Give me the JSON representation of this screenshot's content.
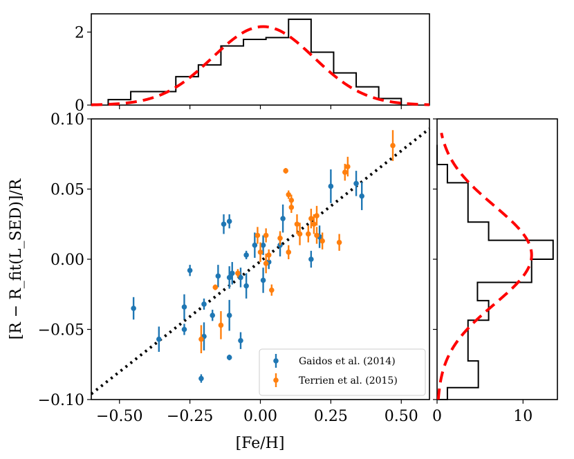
{
  "chart_data": [
    {
      "type": "scatter",
      "name": "main-scatter",
      "xlabel": "[Fe/H]",
      "ylabel": "[R − R_fit(L_SED)]/R",
      "xlim": [
        -0.6,
        0.6
      ],
      "ylim": [
        -0.1,
        0.1
      ],
      "x_ticks": [
        -0.5,
        -0.25,
        0.0,
        0.25,
        0.5
      ],
      "x_tick_labels": [
        "−0.50",
        "−0.25",
        "0.00",
        "0.25",
        "0.50"
      ],
      "y_ticks": [
        -0.1,
        -0.05,
        0.0,
        0.05,
        0.1
      ],
      "y_tick_labels": [
        "−0.10",
        "−0.05",
        "0.00",
        "0.05",
        "0.10"
      ],
      "trend_line": {
        "style": "dotted",
        "color": "#000000",
        "points": [
          [
            -0.6,
            -0.096
          ],
          [
            0.6,
            0.093
          ]
        ]
      },
      "legend": {
        "location": "lower-right"
      },
      "series": [
        {
          "name": "Gaidos et al. (2014)",
          "color": "#1f77b4",
          "points": [
            {
              "x": -0.45,
              "y": -0.035,
              "err": 0.008
            },
            {
              "x": -0.36,
              "y": -0.057,
              "err": 0.009
            },
            {
              "x": -0.27,
              "y": -0.034,
              "err": 0.009
            },
            {
              "x": -0.27,
              "y": -0.05,
              "err": 0.004
            },
            {
              "x": -0.25,
              "y": -0.008,
              "err": 0.004
            },
            {
              "x": -0.21,
              "y": -0.085,
              "err": 0.003
            },
            {
              "x": -0.2,
              "y": -0.032,
              "err": 0.004
            },
            {
              "x": -0.2,
              "y": -0.055,
              "err": 0.01
            },
            {
              "x": -0.17,
              "y": -0.04,
              "err": 0.004
            },
            {
              "x": -0.13,
              "y": 0.025,
              "err": 0.007
            },
            {
              "x": -0.11,
              "y": 0.027,
              "err": 0.005
            },
            {
              "x": -0.11,
              "y": -0.013,
              "err": 0.008
            },
            {
              "x": -0.1,
              "y": -0.01,
              "err": 0.008
            },
            {
              "x": -0.11,
              "y": -0.04,
              "err": 0.011
            },
            {
              "x": -0.11,
              "y": -0.07,
              "err": 0.002
            },
            {
              "x": -0.15,
              "y": -0.012,
              "err": 0.008
            },
            {
              "x": -0.07,
              "y": -0.013,
              "err": 0.007
            },
            {
              "x": -0.07,
              "y": -0.058,
              "err": 0.006
            },
            {
              "x": -0.05,
              "y": 0.003,
              "err": 0.003
            },
            {
              "x": -0.05,
              "y": -0.019,
              "err": 0.009
            },
            {
              "x": -0.02,
              "y": 0.01,
              "err": 0.009
            },
            {
              "x": 0.01,
              "y": 0.01,
              "err": 0.007
            },
            {
              "x": 0.01,
              "y": -0.015,
              "err": 0.009
            },
            {
              "x": 0.03,
              "y": -0.002,
              "err": 0.005
            },
            {
              "x": 0.07,
              "y": 0.01,
              "err": 0.008
            },
            {
              "x": 0.08,
              "y": 0.029,
              "err": 0.01
            },
            {
              "x": 0.18,
              "y": 0.0,
              "err": 0.006
            },
            {
              "x": 0.21,
              "y": 0.016,
              "err": 0.008
            },
            {
              "x": 0.25,
              "y": 0.052,
              "err": 0.012
            },
            {
              "x": 0.34,
              "y": 0.054,
              "err": 0.009
            },
            {
              "x": 0.36,
              "y": 0.045,
              "err": 0.01
            }
          ]
        },
        {
          "name": "Terrien et al. (2015)",
          "color": "#ff7f0e",
          "points": [
            {
              "x": -0.16,
              "y": -0.02,
              "err": 0.002
            },
            {
              "x": -0.14,
              "y": -0.047,
              "err": 0.01
            },
            {
              "x": -0.21,
              "y": -0.057,
              "err": 0.01
            },
            {
              "x": -0.08,
              "y": -0.01,
              "err": 0.003
            },
            {
              "x": -0.01,
              "y": 0.017,
              "err": 0.006
            },
            {
              "x": 0.0,
              "y": 0.005,
              "err": 0.007
            },
            {
              "x": 0.02,
              "y": 0.017,
              "err": 0.005
            },
            {
              "x": 0.02,
              "y": -0.003,
              "err": 0.007
            },
            {
              "x": 0.03,
              "y": 0.003,
              "err": 0.004
            },
            {
              "x": 0.04,
              "y": -0.022,
              "err": 0.004
            },
            {
              "x": 0.07,
              "y": 0.015,
              "err": 0.005
            },
            {
              "x": 0.09,
              "y": 0.063,
              "err": 0.002
            },
            {
              "x": 0.1,
              "y": 0.046,
              "err": 0.003
            },
            {
              "x": 0.11,
              "y": 0.042,
              "err": 0.004
            },
            {
              "x": 0.11,
              "y": 0.037,
              "err": 0.004
            },
            {
              "x": 0.1,
              "y": 0.005,
              "err": 0.005
            },
            {
              "x": 0.13,
              "y": 0.025,
              "err": 0.007
            },
            {
              "x": 0.14,
              "y": 0.018,
              "err": 0.008
            },
            {
              "x": 0.17,
              "y": 0.018,
              "err": 0.006
            },
            {
              "x": 0.18,
              "y": 0.029,
              "err": 0.007
            },
            {
              "x": 0.19,
              "y": 0.025,
              "err": 0.007
            },
            {
              "x": 0.2,
              "y": 0.031,
              "err": 0.007
            },
            {
              "x": 0.2,
              "y": 0.017,
              "err": 0.006
            },
            {
              "x": 0.22,
              "y": 0.013,
              "err": 0.006
            },
            {
              "x": 0.28,
              "y": 0.012,
              "err": 0.006
            },
            {
              "x": 0.3,
              "y": 0.062,
              "err": 0.006
            },
            {
              "x": 0.31,
              "y": 0.066,
              "err": 0.007
            },
            {
              "x": 0.47,
              "y": 0.081,
              "err": 0.011
            }
          ]
        }
      ]
    },
    {
      "type": "histogram",
      "name": "top-histogram",
      "orientation": "vertical",
      "xlim": [
        -0.6,
        0.6
      ],
      "ylim": [
        0,
        2.5
      ],
      "y_ticks": [
        0,
        2
      ],
      "y_tick_labels": [
        "0",
        "2"
      ],
      "bin_edges": [
        -0.54,
        -0.46,
        -0.38,
        -0.3,
        -0.22,
        -0.14,
        -0.06,
        0.02,
        0.1,
        0.18,
        0.26,
        0.34,
        0.42,
        0.5
      ],
      "counts": [
        0.15,
        0.37,
        0.37,
        0.78,
        1.1,
        1.62,
        1.8,
        1.85,
        2.35,
        1.45,
        0.88,
        0.5,
        0.18
      ],
      "gaussian_fit": {
        "style": "dashed",
        "color": "#ff0000",
        "mu": 0.01,
        "sigma": 0.18,
        "peak": 2.15
      }
    },
    {
      "type": "histogram",
      "name": "right-histogram",
      "orientation": "horizontal",
      "ylim": [
        -0.1,
        0.1
      ],
      "xlim": [
        0,
        14
      ],
      "x_ticks": [
        0,
        10
      ],
      "x_tick_labels": [
        "0",
        "10"
      ],
      "bin_edges": [
        -0.1,
        -0.0915,
        -0.0725,
        -0.0435,
        -0.0295,
        -0.0165,
        0.0,
        0.0135,
        0.0265,
        0.0545,
        0.0675,
        0.0815
      ],
      "counts": [
        1.2,
        4.8,
        3.6,
        6.0,
        4.7,
        11.0,
        13.5,
        6.0,
        3.6,
        1.2,
        0.0
      ],
      "gaussian_fit": {
        "style": "dashed",
        "color": "#ff0000",
        "mu": 0.003,
        "sigma": 0.035,
        "peak": 11.0
      }
    }
  ]
}
